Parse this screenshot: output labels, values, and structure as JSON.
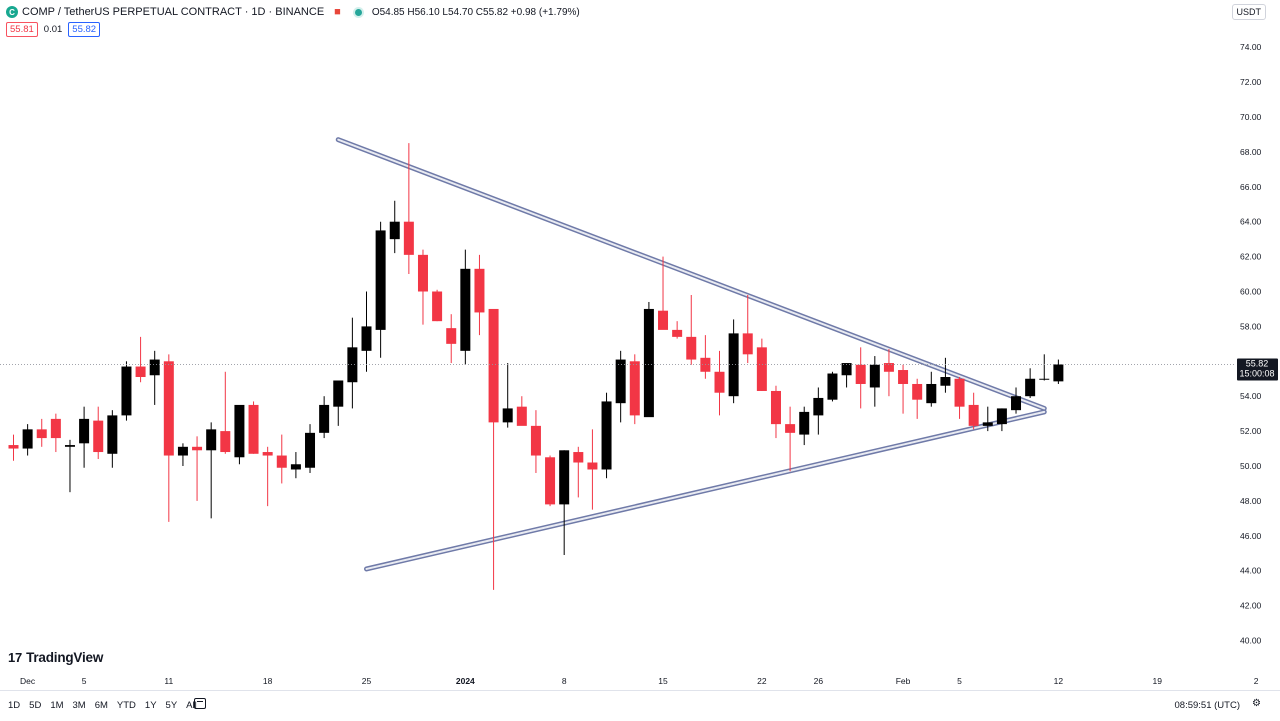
{
  "header": {
    "symbol_icon": "comp-coin-icon",
    "title": "COMP / TetherUS PERPETUAL CONTRACT · 1D · BINANCE",
    "ohlc": "O54.85 H56.10 L54.70 C55.82 +0.98 (+1.79%)",
    "bid": "55.81",
    "spread": "0.01",
    "ask": "55.82"
  },
  "currency": "USDT",
  "logo": "TradingView",
  "bottom": {
    "ranges": [
      "1D",
      "5D",
      "1M",
      "3M",
      "6M",
      "YTD",
      "1Y",
      "5Y",
      "All"
    ],
    "clock": "08:59:51 (UTC)"
  },
  "chart_data": {
    "type": "candlestick",
    "yaxis": {
      "range": [
        39.5,
        75.0
      ],
      "ticks": [
        "40.00",
        "42.00",
        "44.00",
        "46.00",
        "48.00",
        "50.00",
        "52.00",
        "54.00",
        "56.00",
        "58.00",
        "60.00",
        "62.00",
        "64.00",
        "66.00",
        "68.00",
        "70.00",
        "72.00",
        "74.00"
      ]
    },
    "xaxis": {
      "start_date": "2023-11-30",
      "labels": [
        {
          "d": 1,
          "t": "Dec"
        },
        {
          "d": 5,
          "t": "5"
        },
        {
          "d": 11,
          "t": "11"
        },
        {
          "d": 18,
          "t": "18"
        },
        {
          "d": 25,
          "t": "25"
        },
        {
          "d": 32,
          "t": "2024"
        },
        {
          "d": 39,
          "t": "8"
        },
        {
          "d": 46,
          "t": "15"
        },
        {
          "d": 53,
          "t": "22"
        },
        {
          "d": 57,
          "t": "26"
        },
        {
          "d": 63,
          "t": "Feb"
        },
        {
          "d": 67,
          "t": "5"
        },
        {
          "d": 74,
          "t": "12"
        },
        {
          "d": 81,
          "t": "19"
        },
        {
          "d": 88,
          "t": "2"
        }
      ]
    },
    "last_price": {
      "value": 55.82,
      "label": "55.82",
      "countdown": "15:00:08"
    },
    "colors": {
      "up": "#000000",
      "down": "#f23645",
      "trendline": "#6f7aa8"
    },
    "trendlines": [
      {
        "from": [
          23,
          68.7
        ],
        "to": [
          73,
          53.3
        ]
      },
      {
        "from": [
          25,
          44.1
        ],
        "to": [
          73,
          53.1
        ]
      }
    ],
    "candles": [
      [
        0,
        51.2,
        51.8,
        50.3,
        51.0
      ],
      [
        1,
        51.0,
        52.4,
        50.6,
        52.1
      ],
      [
        2,
        52.1,
        52.7,
        51.1,
        51.6
      ],
      [
        3,
        52.7,
        53.0,
        50.8,
        51.6
      ],
      [
        4,
        51.1,
        51.5,
        48.5,
        51.2
      ],
      [
        5,
        51.3,
        53.4,
        49.9,
        52.7
      ],
      [
        6,
        52.6,
        53.4,
        50.4,
        50.8
      ],
      [
        7,
        50.7,
        53.2,
        49.9,
        52.9
      ],
      [
        8,
        52.9,
        56.0,
        52.6,
        55.7
      ],
      [
        9,
        55.7,
        57.4,
        54.8,
        55.1
      ],
      [
        10,
        55.2,
        56.6,
        53.5,
        56.1
      ],
      [
        11,
        56.0,
        56.4,
        46.8,
        50.6
      ],
      [
        12,
        50.6,
        51.3,
        50.0,
        51.1
      ],
      [
        13,
        51.1,
        51.7,
        48.0,
        50.9
      ],
      [
        14,
        50.9,
        52.5,
        47.0,
        52.1
      ],
      [
        15,
        52.0,
        55.4,
        50.7,
        50.8
      ],
      [
        16,
        50.5,
        53.2,
        50.1,
        53.5
      ],
      [
        17,
        53.5,
        53.7,
        50.7,
        50.7
      ],
      [
        18,
        50.8,
        51.1,
        47.7,
        50.6
      ],
      [
        19,
        50.6,
        51.8,
        49.0,
        49.9
      ],
      [
        20,
        49.8,
        50.8,
        49.3,
        50.1
      ],
      [
        21,
        49.9,
        52.4,
        49.6,
        51.9
      ],
      [
        22,
        51.9,
        54.0,
        51.6,
        53.5
      ],
      [
        23,
        53.4,
        54.7,
        52.3,
        54.9
      ],
      [
        24,
        54.8,
        58.5,
        53.3,
        56.8
      ],
      [
        25,
        56.6,
        60.0,
        55.4,
        58.0
      ],
      [
        26,
        57.8,
        64.0,
        56.2,
        63.5
      ],
      [
        27,
        63.0,
        65.2,
        62.2,
        64.0
      ],
      [
        28,
        64.0,
        68.5,
        61.0,
        62.1
      ],
      [
        29,
        62.1,
        62.4,
        58.1,
        60.0
      ],
      [
        30,
        60.0,
        60.1,
        58.3,
        58.3
      ],
      [
        31,
        57.9,
        58.7,
        55.9,
        57.0
      ],
      [
        32,
        56.6,
        62.4,
        55.8,
        61.3
      ],
      [
        33,
        61.3,
        62.1,
        57.5,
        58.8
      ],
      [
        34,
        59.0,
        59.0,
        42.9,
        52.5
      ],
      [
        35,
        52.5,
        55.9,
        52.2,
        53.3
      ],
      [
        36,
        53.4,
        54.0,
        52.5,
        52.3
      ],
      [
        37,
        52.3,
        53.2,
        49.6,
        50.6
      ],
      [
        38,
        50.5,
        50.6,
        47.7,
        47.8
      ],
      [
        39,
        47.8,
        50.9,
        44.9,
        50.9
      ],
      [
        40,
        50.8,
        51.1,
        48.2,
        50.2
      ],
      [
        41,
        50.2,
        52.1,
        47.5,
        49.8
      ],
      [
        42,
        49.8,
        54.2,
        49.3,
        53.7
      ],
      [
        43,
        53.6,
        56.6,
        52.5,
        56.1
      ],
      [
        44,
        56.0,
        56.4,
        52.4,
        52.9
      ],
      [
        45,
        52.8,
        59.4,
        52.9,
        59.0
      ],
      [
        46,
        58.9,
        62.0,
        57.9,
        57.8
      ],
      [
        47,
        57.8,
        58.3,
        57.3,
        57.4
      ],
      [
        48,
        57.4,
        59.8,
        55.8,
        56.1
      ],
      [
        49,
        56.2,
        57.5,
        55.0,
        55.4
      ],
      [
        50,
        55.4,
        56.6,
        52.9,
        54.2
      ],
      [
        51,
        54.0,
        58.4,
        53.6,
        57.6
      ],
      [
        52,
        57.6,
        59.8,
        55.9,
        56.4
      ],
      [
        53,
        56.8,
        57.3,
        54.3,
        54.3
      ],
      [
        54,
        54.3,
        54.6,
        51.6,
        52.4
      ],
      [
        55,
        52.4,
        53.4,
        49.7,
        51.9
      ],
      [
        56,
        51.8,
        53.4,
        51.2,
        53.1
      ],
      [
        57,
        52.9,
        54.5,
        51.8,
        53.9
      ],
      [
        58,
        53.8,
        55.4,
        53.7,
        55.3
      ],
      [
        59,
        55.2,
        55.9,
        54.5,
        55.9
      ],
      [
        60,
        55.8,
        56.8,
        53.3,
        54.7
      ],
      [
        61,
        54.5,
        56.3,
        53.4,
        55.8
      ],
      [
        62,
        55.9,
        56.7,
        54.0,
        55.4
      ],
      [
        63,
        55.5,
        55.8,
        53.0,
        54.7
      ],
      [
        64,
        54.7,
        55.0,
        52.7,
        53.8
      ],
      [
        65,
        53.6,
        55.4,
        53.4,
        54.7
      ],
      [
        66,
        54.6,
        56.2,
        54.2,
        55.1
      ],
      [
        67,
        55.0,
        55.1,
        52.7,
        53.4
      ],
      [
        68,
        53.5,
        54.2,
        52.1,
        52.3
      ],
      [
        69,
        52.3,
        53.4,
        52.0,
        52.5
      ],
      [
        70,
        52.4,
        53.3,
        52.0,
        53.3
      ],
      [
        71,
        53.2,
        54.5,
        53.0,
        54.0
      ],
      [
        72,
        54.0,
        55.6,
        53.9,
        55.0
      ],
      [
        73,
        55.0,
        56.4,
        54.9,
        55.0
      ],
      [
        74,
        54.85,
        56.1,
        54.7,
        55.82
      ]
    ]
  }
}
